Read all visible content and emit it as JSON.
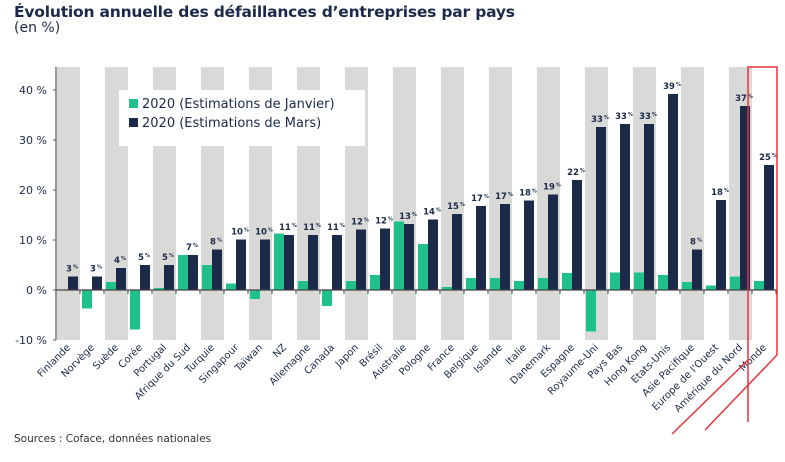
{
  "chart_data": {
    "type": "bar",
    "title": "Évolution annuelle des défaillances d’entreprises par pays",
    "subtitle": "(en %)",
    "source": "Sources : Coface, données nationales",
    "ylim": [
      -10,
      45
    ],
    "yticks": [
      -10,
      0,
      10,
      20,
      30,
      40
    ],
    "ytick_labels": [
      "-10 %",
      "0 %",
      "10 %",
      "20 %",
      "30 %",
      "40 %"
    ],
    "legend_position": "top-left",
    "highlighted_category": "Monde",
    "colors": {
      "janvier": "#1fc18a",
      "mars": "#1b2a4a",
      "band": "#d9dad8",
      "highlight": "#e8323c"
    },
    "categories": [
      "Finlande",
      "Norvège",
      "Suède",
      "Corée",
      "Portugal",
      "Afrique du Sud",
      "Turquie",
      "Singapour",
      "Taïwan",
      "NZ",
      "Allemagne",
      "Canada",
      "Japon",
      "Brésil",
      "Australie",
      "Pologne",
      "France",
      "Belgique",
      "Islande",
      "Italie",
      "Danemark",
      "Espagne",
      "Royaume-Uni",
      "Pays Bas",
      "Hong Kong",
      "Etats-Unis",
      "Asie Pacifique",
      "Europe de l'Ouest",
      "Amérique du Nord",
      "Monde"
    ],
    "series": [
      {
        "name": "2020 (Estimations de Janvier)",
        "values": [
          0,
          -3.7,
          1.6,
          -7.9,
          0.4,
          7,
          5,
          1.3,
          -1.8,
          11.3,
          1.8,
          -3.2,
          1.8,
          3,
          13.7,
          9.2,
          0.6,
          2.4,
          2.4,
          1.8,
          2.4,
          3.4,
          -8.3,
          3.5,
          3.5,
          3,
          1.6,
          0.9,
          2.7,
          1.8
        ]
      },
      {
        "name": "2020 (Estimations de Mars)",
        "values": [
          2.7,
          2.7,
          4.4,
          5,
          5,
          7,
          8.1,
          10.1,
          10.1,
          11,
          11,
          11,
          12.1,
          12.3,
          13.2,
          14.1,
          15.2,
          16.8,
          17.2,
          17.9,
          19.1,
          22,
          32.6,
          33.2,
          33.2,
          39.2,
          8.1,
          18,
          36.8,
          25
        ],
        "labels": [
          "3",
          "3",
          "4",
          "5",
          "5",
          "7",
          "8",
          "10",
          "10",
          "11",
          "11",
          "11",
          "12",
          "12",
          "13",
          "14",
          "15",
          "17",
          "17",
          "18",
          "19",
          "22",
          "33",
          "33",
          "33",
          "39",
          "8",
          "18",
          "37",
          "25"
        ]
      }
    ],
    "label_unit": "%"
  }
}
